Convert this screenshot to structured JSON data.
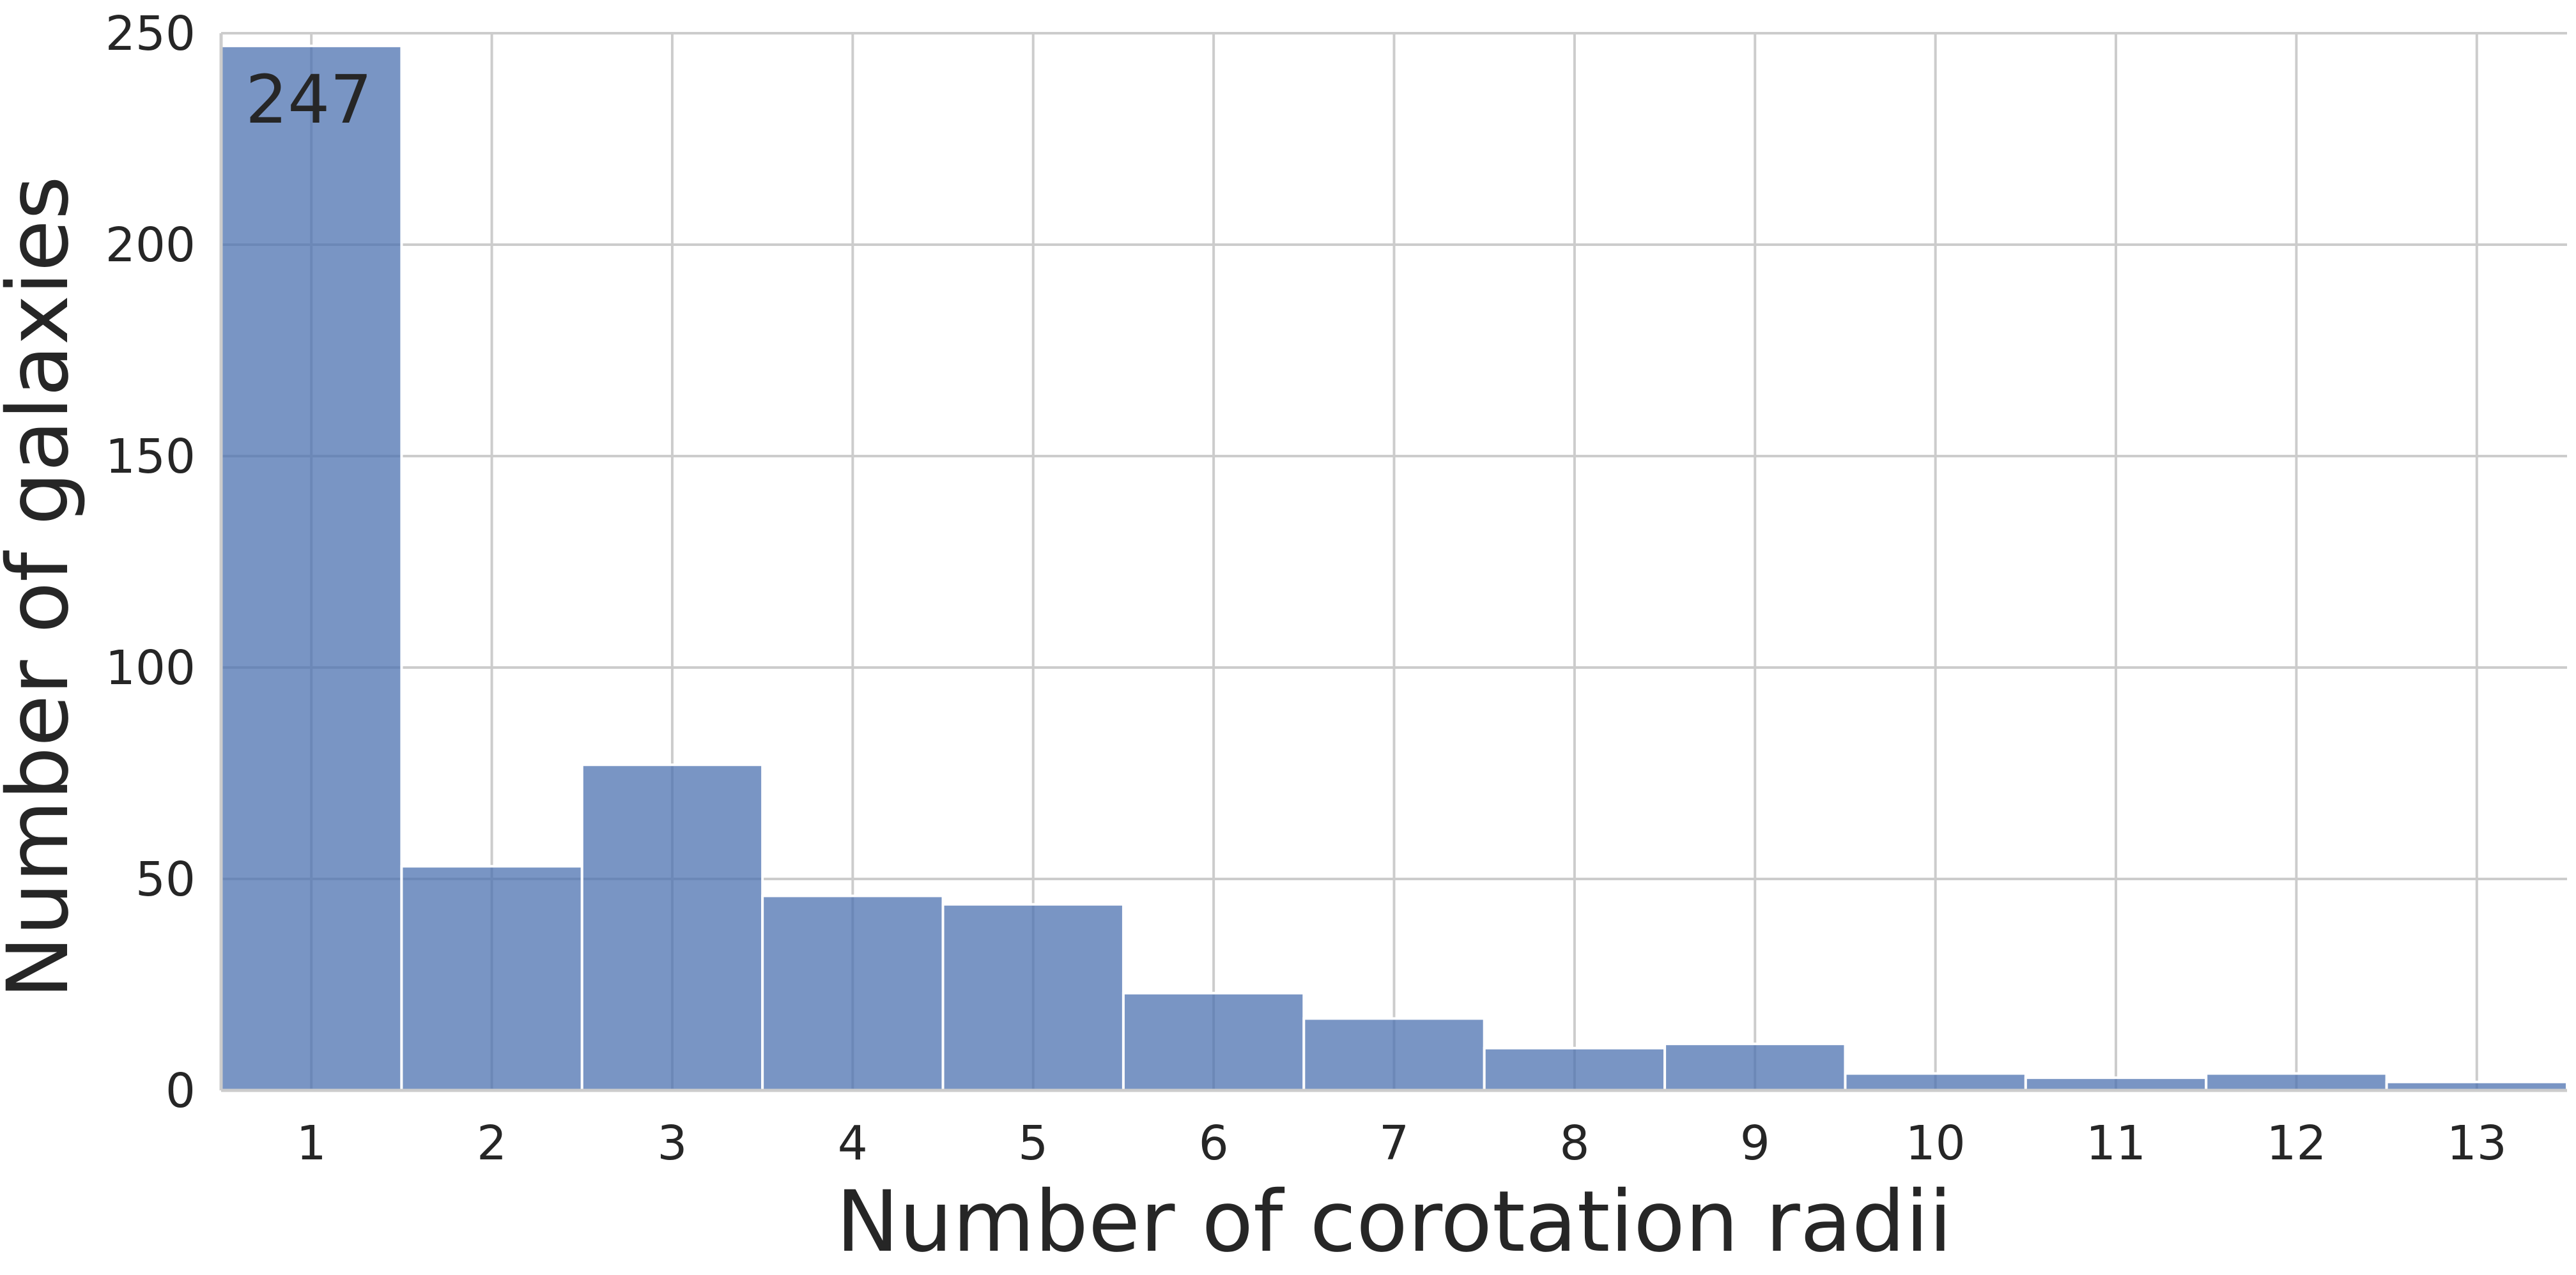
{
  "chart_data": {
    "type": "bar",
    "categories": [
      "1",
      "2",
      "3",
      "4",
      "5",
      "6",
      "7",
      "8",
      "9",
      "10",
      "11",
      "12",
      "13"
    ],
    "values": [
      247,
      53,
      77,
      46,
      44,
      23,
      17,
      10,
      11,
      4,
      3,
      4,
      2
    ],
    "xlabel": "Number of corotation radii",
    "ylabel": "Number of galaxies",
    "ylim": [
      0,
      250
    ],
    "yticks": [
      "0",
      "50",
      "100",
      "150",
      "200",
      "250"
    ],
    "annotations": [
      "247"
    ],
    "grid": true,
    "legend": "none"
  },
  "colors": {
    "bar": "#4c72b0",
    "grid": "#cccccc",
    "text": "#262626",
    "background": "#ffffff"
  }
}
